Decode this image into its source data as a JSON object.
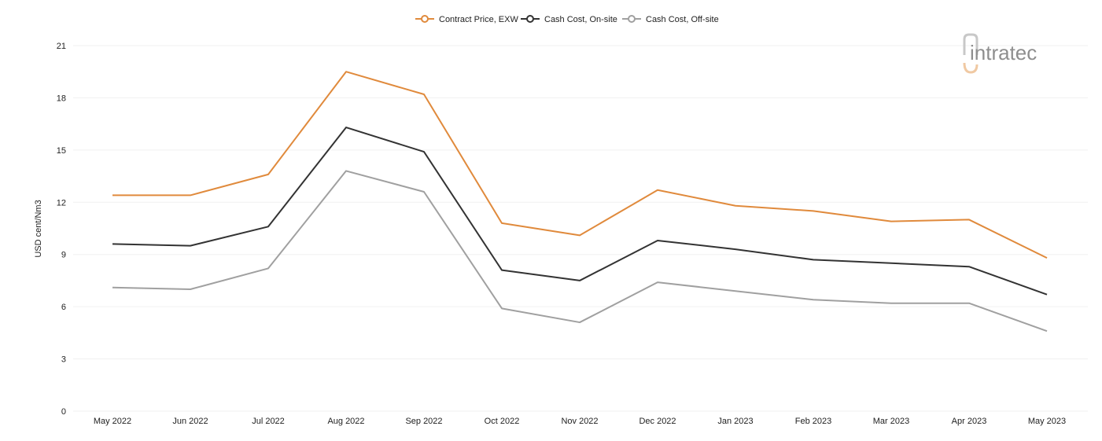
{
  "logo": {
    "text": "intratec"
  },
  "chart_data": {
    "type": "line",
    "categories": [
      "May 2022",
      "Jun 2022",
      "Jul 2022",
      "Aug 2022",
      "Sep 2022",
      "Oct 2022",
      "Nov 2022",
      "Dec 2022",
      "Jan 2023",
      "Feb 2023",
      "Mar 2023",
      "Apr 2023",
      "May 2023"
    ],
    "ylabel": "USD cent/Nm3",
    "xlabel": "",
    "ylim": [
      0,
      21
    ],
    "yticks": [
      0,
      3,
      6,
      9,
      12,
      15,
      18,
      21
    ],
    "grid": true,
    "legend_position": "top-center",
    "series": [
      {
        "name": "Contract Price, EXW",
        "color": "#e08a3c",
        "values": [
          12.4,
          12.4,
          13.6,
          19.5,
          18.2,
          10.8,
          10.1,
          12.7,
          11.8,
          11.5,
          10.9,
          11.0,
          8.8
        ]
      },
      {
        "name": "Cash Cost, On-site",
        "color": "#333333",
        "values": [
          9.6,
          9.5,
          10.6,
          16.3,
          14.9,
          8.1,
          7.5,
          9.8,
          9.3,
          8.7,
          8.5,
          8.3,
          6.7
        ]
      },
      {
        "name": "Cash Cost, Off-site",
        "color": "#a0a0a0",
        "values": [
          7.1,
          7.0,
          8.2,
          13.8,
          12.6,
          5.9,
          5.1,
          7.4,
          6.9,
          6.4,
          6.2,
          6.2,
          4.6
        ]
      }
    ]
  }
}
